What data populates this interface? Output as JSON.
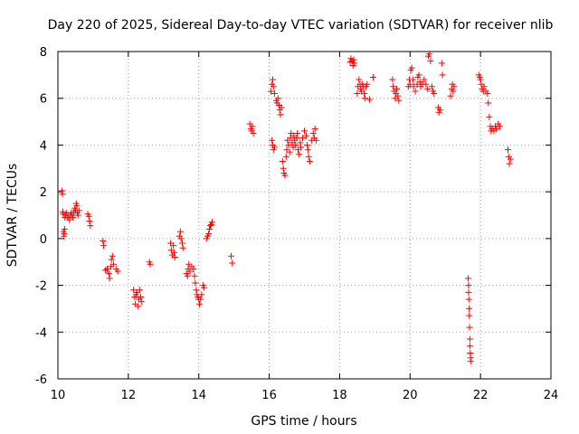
{
  "chart_data": {
    "type": "scatter",
    "title": "Day 220 of 2025, Sidereal Day-to-day VTEC variation (SDTVAR) for receiver nlib",
    "xlabel": "GPS time / hours",
    "ylabel": "SDTVAR / TECUs",
    "xlim": [
      10,
      24
    ],
    "ylim": [
      -6,
      8
    ],
    "xticks": [
      10,
      12,
      14,
      16,
      18,
      20,
      22,
      24
    ],
    "yticks": [
      -6,
      -4,
      -2,
      0,
      2,
      4,
      6,
      8
    ],
    "grid": true,
    "marker": "+",
    "color": "#ff0000",
    "series": [
      {
        "name": "SDTVAR",
        "points": [
          [
            10.12,
            2.05
          ],
          [
            10.13,
            1.9
          ],
          [
            10.14,
            1.15
          ],
          [
            10.15,
            1.05
          ],
          [
            10.16,
            0.3
          ],
          [
            10.17,
            0.1
          ],
          [
            10.18,
            0.2
          ],
          [
            10.19,
            0.4
          ],
          [
            10.2,
            0.9
          ],
          [
            10.22,
            1.0
          ],
          [
            10.25,
            1.1
          ],
          [
            10.28,
            0.9
          ],
          [
            10.3,
            1.0
          ],
          [
            10.33,
            0.8
          ],
          [
            10.35,
            1.0
          ],
          [
            10.38,
            1.1
          ],
          [
            10.4,
            1.0
          ],
          [
            10.43,
            0.9
          ],
          [
            10.45,
            1.1
          ],
          [
            10.48,
            1.3
          ],
          [
            10.5,
            1.2
          ],
          [
            10.52,
            1.5
          ],
          [
            10.54,
            1.4
          ],
          [
            10.55,
            1.1
          ],
          [
            10.57,
            1.0
          ],
          [
            10.6,
            1.2
          ],
          [
            10.85,
            1.05
          ],
          [
            10.88,
            0.95
          ],
          [
            10.9,
            0.75
          ],
          [
            10.92,
            0.55
          ],
          [
            11.28,
            -0.1
          ],
          [
            11.3,
            -0.3
          ],
          [
            11.35,
            -1.35
          ],
          [
            11.4,
            -1.3
          ],
          [
            11.45,
            -1.5
          ],
          [
            11.47,
            -1.7
          ],
          [
            11.5,
            -1.2
          ],
          [
            11.52,
            -0.9
          ],
          [
            11.55,
            -0.75
          ],
          [
            11.58,
            -1.1
          ],
          [
            11.65,
            -1.3
          ],
          [
            11.7,
            -1.4
          ],
          [
            12.15,
            -2.2
          ],
          [
            12.18,
            -2.5
          ],
          [
            12.2,
            -2.8
          ],
          [
            12.22,
            -2.4
          ],
          [
            12.25,
            -2.3
          ],
          [
            12.28,
            -2.9
          ],
          [
            12.3,
            -2.6
          ],
          [
            12.32,
            -2.2
          ],
          [
            12.35,
            -2.5
          ],
          [
            12.37,
            -2.7
          ],
          [
            12.6,
            -1.0
          ],
          [
            12.62,
            -1.1
          ],
          [
            13.2,
            -0.2
          ],
          [
            13.22,
            -0.5
          ],
          [
            13.25,
            -0.7
          ],
          [
            13.28,
            -0.3
          ],
          [
            13.3,
            -0.6
          ],
          [
            13.32,
            -0.8
          ],
          [
            13.45,
            0.1
          ],
          [
            13.48,
            0.3
          ],
          [
            13.5,
            0.0
          ],
          [
            13.53,
            -0.2
          ],
          [
            13.55,
            -0.4
          ],
          [
            13.65,
            -1.5
          ],
          [
            13.68,
            -1.6
          ],
          [
            13.7,
            -1.3
          ],
          [
            13.72,
            -1.1
          ],
          [
            13.75,
            -1.4
          ],
          [
            13.8,
            -1.2
          ],
          [
            13.85,
            -1.3
          ],
          [
            13.88,
            -1.6
          ],
          [
            13.9,
            -1.9
          ],
          [
            13.93,
            -2.2
          ],
          [
            13.95,
            -2.4
          ],
          [
            13.98,
            -2.5
          ],
          [
            14.0,
            -2.6
          ],
          [
            14.02,
            -2.8
          ],
          [
            14.05,
            -2.6
          ],
          [
            14.08,
            -2.4
          ],
          [
            14.12,
            -2.0
          ],
          [
            14.15,
            -2.1
          ],
          [
            14.22,
            0.0
          ],
          [
            14.25,
            0.1
          ],
          [
            14.28,
            0.2
          ],
          [
            14.3,
            0.4
          ],
          [
            14.33,
            0.55
          ],
          [
            14.35,
            0.6
          ],
          [
            14.38,
            0.7
          ],
          [
            14.92,
            -0.75
          ],
          [
            14.95,
            -1.05
          ],
          [
            15.45,
            4.9
          ],
          [
            15.48,
            4.7
          ],
          [
            15.5,
            4.6
          ],
          [
            15.52,
            4.8
          ],
          [
            15.55,
            4.5
          ],
          [
            16.05,
            6.3
          ],
          [
            16.08,
            6.6
          ],
          [
            16.1,
            6.8
          ],
          [
            16.12,
            6.5
          ],
          [
            16.15,
            6.2
          ],
          [
            16.08,
            4.2
          ],
          [
            16.1,
            4.0
          ],
          [
            16.12,
            3.8
          ],
          [
            16.15,
            3.9
          ],
          [
            16.2,
            5.9
          ],
          [
            16.22,
            5.8
          ],
          [
            16.25,
            6.0
          ],
          [
            16.28,
            5.7
          ],
          [
            16.3,
            5.5
          ],
          [
            16.32,
            5.3
          ],
          [
            16.35,
            5.6
          ],
          [
            16.38,
            3.3
          ],
          [
            16.4,
            3.0
          ],
          [
            16.42,
            2.8
          ],
          [
            16.45,
            2.7
          ],
          [
            16.48,
            3.5
          ],
          [
            16.5,
            3.8
          ],
          [
            16.52,
            4.2
          ],
          [
            16.55,
            4.0
          ],
          [
            16.58,
            3.7
          ],
          [
            16.6,
            4.3
          ],
          [
            16.62,
            4.5
          ],
          [
            16.65,
            4.1
          ],
          [
            16.68,
            3.9
          ],
          [
            16.7,
            4.4
          ],
          [
            16.72,
            4.2
          ],
          [
            16.75,
            4.0
          ],
          [
            16.78,
            4.3
          ],
          [
            16.8,
            4.5
          ],
          [
            16.82,
            3.8
          ],
          [
            16.85,
            3.6
          ],
          [
            16.88,
            4.1
          ],
          [
            16.9,
            3.9
          ],
          [
            16.95,
            4.3
          ],
          [
            17.0,
            4.6
          ],
          [
            17.05,
            4.4
          ],
          [
            17.08,
            4.0
          ],
          [
            17.1,
            3.8
          ],
          [
            17.12,
            3.5
          ],
          [
            17.15,
            3.3
          ],
          [
            17.2,
            4.2
          ],
          [
            17.25,
            4.5
          ],
          [
            17.28,
            4.3
          ],
          [
            17.3,
            4.7
          ],
          [
            17.33,
            4.2
          ],
          [
            18.3,
            7.55
          ],
          [
            18.32,
            7.7
          ],
          [
            18.35,
            7.6
          ],
          [
            18.38,
            7.4
          ],
          [
            18.4,
            7.65
          ],
          [
            18.42,
            7.5
          ],
          [
            18.5,
            6.2
          ],
          [
            18.52,
            6.5
          ],
          [
            18.55,
            6.8
          ],
          [
            18.58,
            6.6
          ],
          [
            18.6,
            6.4
          ],
          [
            18.62,
            6.3
          ],
          [
            18.65,
            6.6
          ],
          [
            18.68,
            6.5
          ],
          [
            18.7,
            6.2
          ],
          [
            18.72,
            6.0
          ],
          [
            18.75,
            6.5
          ],
          [
            18.78,
            6.6
          ],
          [
            18.85,
            5.95
          ],
          [
            18.95,
            6.9
          ],
          [
            19.5,
            6.8
          ],
          [
            19.52,
            6.5
          ],
          [
            19.55,
            6.3
          ],
          [
            19.58,
            6.0
          ],
          [
            19.6,
            6.2
          ],
          [
            19.62,
            6.4
          ],
          [
            19.65,
            6.1
          ],
          [
            19.68,
            5.9
          ],
          [
            19.95,
            6.5
          ],
          [
            19.98,
            6.8
          ],
          [
            20.0,
            6.6
          ],
          [
            20.02,
            7.2
          ],
          [
            20.05,
            7.3
          ],
          [
            20.08,
            6.8
          ],
          [
            20.1,
            6.5
          ],
          [
            20.15,
            6.3
          ],
          [
            20.2,
            6.6
          ],
          [
            20.22,
            6.9
          ],
          [
            20.25,
            7.0
          ],
          [
            20.28,
            6.7
          ],
          [
            20.3,
            6.5
          ],
          [
            20.35,
            6.6
          ],
          [
            20.4,
            6.8
          ],
          [
            20.45,
            6.6
          ],
          [
            20.5,
            6.4
          ],
          [
            20.52,
            7.8
          ],
          [
            20.55,
            7.9
          ],
          [
            20.58,
            7.6
          ],
          [
            20.62,
            6.5
          ],
          [
            20.65,
            6.3
          ],
          [
            20.68,
            6.2
          ],
          [
            20.8,
            5.6
          ],
          [
            20.82,
            5.4
          ],
          [
            20.85,
            5.5
          ],
          [
            20.9,
            7.5
          ],
          [
            20.92,
            7.0
          ],
          [
            21.15,
            6.1
          ],
          [
            21.18,
            6.4
          ],
          [
            21.2,
            6.6
          ],
          [
            21.22,
            6.3
          ],
          [
            21.25,
            6.5
          ],
          [
            21.65,
            -1.7
          ],
          [
            21.66,
            -2.0
          ],
          [
            21.66,
            -2.3
          ],
          [
            21.67,
            -2.6
          ],
          [
            21.68,
            -3.0
          ],
          [
            21.68,
            -3.3
          ],
          [
            21.69,
            -3.8
          ],
          [
            21.7,
            -4.3
          ],
          [
            21.7,
            -4.6
          ],
          [
            21.71,
            -4.9
          ],
          [
            21.72,
            -5.1
          ],
          [
            21.72,
            -5.25
          ],
          [
            21.95,
            7.0
          ],
          [
            21.98,
            6.9
          ],
          [
            22.0,
            6.8
          ],
          [
            22.02,
            6.6
          ],
          [
            22.05,
            6.4
          ],
          [
            22.08,
            6.3
          ],
          [
            22.1,
            6.5
          ],
          [
            22.15,
            6.3
          ],
          [
            22.2,
            6.2
          ],
          [
            22.22,
            5.8
          ],
          [
            22.25,
            5.2
          ],
          [
            22.28,
            4.8
          ],
          [
            22.3,
            4.6
          ],
          [
            22.33,
            4.7
          ],
          [
            22.38,
            4.6
          ],
          [
            22.42,
            4.8
          ],
          [
            22.45,
            4.7
          ],
          [
            22.5,
            4.9
          ],
          [
            22.55,
            4.8
          ],
          [
            22.78,
            3.8
          ],
          [
            22.8,
            3.5
          ],
          [
            22.82,
            3.2
          ],
          [
            22.85,
            3.4
          ]
        ]
      }
    ]
  }
}
